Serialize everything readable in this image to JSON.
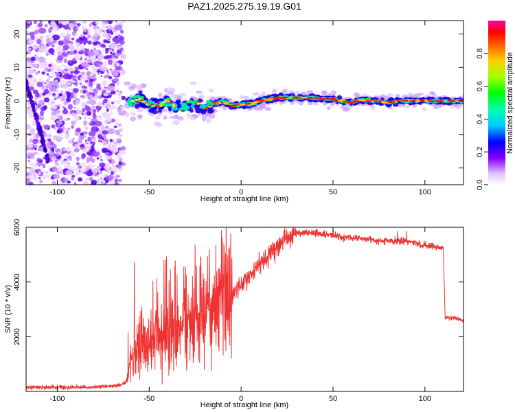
{
  "title": "PAZ1.2025.275.19.19.G01",
  "chart_data": [
    {
      "type": "heatmap",
      "xlabel": "Height of straight line (km)",
      "ylabel": "Frequency (Hz)",
      "xlim": [
        -117,
        121
      ],
      "ylim": [
        -25,
        24
      ],
      "xticks": [
        -100,
        -50,
        0,
        50,
        100
      ],
      "yticks": [
        -20,
        -10,
        0,
        10,
        20
      ],
      "colorbar": {
        "label": "Normalized spectral amplitude",
        "range": [
          0,
          1
        ],
        "ticks": [
          "0.0",
          "0.2",
          "0.4",
          "0.6",
          "0.8"
        ],
        "tick_values": [
          0,
          0.2,
          0.4,
          0.6,
          0.8
        ]
      },
      "ridge": {
        "x": [
          -62,
          -55,
          -50,
          -45,
          -40,
          -35,
          -30,
          -25,
          -20,
          -15,
          -10,
          -5,
          0,
          5,
          10,
          15,
          20,
          25,
          30,
          35,
          40,
          45,
          50,
          55,
          60,
          65,
          70,
          75,
          80,
          85,
          90,
          95,
          100,
          105,
          110,
          115,
          121
        ],
        "f": [
          -0.5,
          0.5,
          -1,
          -1.5,
          0,
          -2,
          -1.5,
          -0.5,
          -2,
          -1,
          0,
          -1.5,
          -1,
          -1,
          0,
          0.5,
          1,
          1,
          1,
          1,
          1,
          0.5,
          0.5,
          0,
          -0.5,
          0.5,
          0,
          0,
          -0.5,
          0,
          0,
          0,
          0,
          0,
          0,
          0,
          0
        ]
      },
      "streak": {
        "x": [
          -117,
          -115,
          -113,
          -111,
          -109,
          -107,
          -105
        ],
        "f": [
          5,
          2,
          -2,
          -6,
          -9,
          -14,
          -18
        ]
      }
    },
    {
      "type": "line",
      "xlabel": "Height of straight line (km)",
      "ylabel": "SNR (10 * v/v)",
      "xlim": [
        -117,
        121
      ],
      "ylim": [
        0,
        6000
      ],
      "xticks": [
        -100,
        -50,
        0,
        50,
        100
      ],
      "yticks": [
        2000,
        4000,
        6000
      ],
      "series": [
        {
          "name": "SNR",
          "color": "#ee3333",
          "x": [
            -117,
            -110,
            -100,
            -90,
            -80,
            -70,
            -65,
            -62,
            -60,
            -55,
            -50,
            -45,
            -40,
            -35,
            -30,
            -25,
            -20,
            -15,
            -10,
            -5,
            0,
            5,
            10,
            15,
            20,
            25,
            30,
            35,
            40,
            45,
            50,
            55,
            60,
            65,
            70,
            75,
            80,
            85,
            90,
            95,
            100,
            105,
            110,
            111,
            115,
            121
          ],
          "y": [
            150,
            150,
            150,
            150,
            150,
            200,
            250,
            400,
            1000,
            1900,
            1600,
            2000,
            2000,
            2200,
            2500,
            2600,
            2800,
            3000,
            3300,
            3600,
            3900,
            4200,
            4600,
            5000,
            5300,
            5650,
            5800,
            5800,
            5800,
            5750,
            5700,
            5650,
            5600,
            5600,
            5550,
            5500,
            5500,
            5500,
            5500,
            5400,
            5350,
            5300,
            5250,
            2700,
            2700,
            2600
          ]
        }
      ]
    }
  ]
}
